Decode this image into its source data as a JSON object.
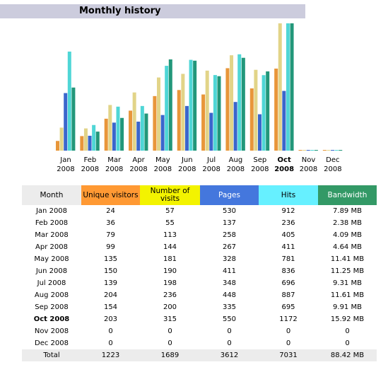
{
  "header": {
    "title": "Monthly history"
  },
  "month_header": "Month",
  "metrics": [
    {
      "name": "Unique visitors",
      "header_color": "#FF9933",
      "bar_color": "#E8963A"
    },
    {
      "name": "Number of visits",
      "header_color": "#F3F300",
      "bar_color": "#E2D488"
    },
    {
      "name": "Pages",
      "header_color": "#4477DD",
      "bar_color": "#3A66CC"
    },
    {
      "name": "Hits",
      "header_color": "#66F0FF",
      "bar_color": "#4FD6D6"
    },
    {
      "name": "Bandwidth",
      "header_color": "#339966",
      "bar_color": "#22977A"
    }
  ],
  "rows": [
    {
      "month": "Jan",
      "year": "2008",
      "values": [
        24,
        57,
        530,
        912,
        {
          "value": 7.89,
          "label": "7.89 MB"
        }
      ]
    },
    {
      "month": "Feb",
      "year": "2008",
      "values": [
        36,
        55,
        137,
        236,
        {
          "value": 2.38,
          "label": "2.38 MB"
        }
      ]
    },
    {
      "month": "Mar",
      "year": "2008",
      "values": [
        79,
        113,
        258,
        405,
        {
          "value": 4.09,
          "label": "4.09 MB"
        }
      ]
    },
    {
      "month": "Apr",
      "year": "2008",
      "values": [
        99,
        144,
        267,
        411,
        {
          "value": 4.64,
          "label": "4.64 MB"
        }
      ]
    },
    {
      "month": "May",
      "year": "2008",
      "values": [
        135,
        181,
        328,
        781,
        {
          "value": 11.41,
          "label": "11.41 MB"
        }
      ]
    },
    {
      "month": "Jun",
      "year": "2008",
      "values": [
        150,
        190,
        411,
        836,
        {
          "value": 11.25,
          "label": "11.25 MB"
        }
      ]
    },
    {
      "month": "Jul",
      "year": "2008",
      "values": [
        139,
        198,
        348,
        696,
        {
          "value": 9.31,
          "label": "9.31 MB"
        }
      ]
    },
    {
      "month": "Aug",
      "year": "2008",
      "values": [
        204,
        236,
        448,
        887,
        {
          "value": 11.61,
          "label": "11.61 MB"
        }
      ]
    },
    {
      "month": "Sep",
      "year": "2008",
      "values": [
        154,
        200,
        335,
        695,
        {
          "value": 9.91,
          "label": "9.91 MB"
        }
      ]
    },
    {
      "month": "Oct",
      "year": "2008",
      "current": true,
      "values": [
        203,
        315,
        550,
        1172,
        {
          "value": 15.92,
          "label": "15.92 MB"
        }
      ]
    },
    {
      "month": "Nov",
      "year": "2008",
      "values": [
        0,
        0,
        0,
        0,
        0
      ]
    },
    {
      "month": "Dec",
      "year": "2008",
      "values": [
        0,
        0,
        0,
        0,
        0
      ]
    }
  ],
  "total": {
    "label": "Total",
    "values": [
      1223,
      1689,
      3612,
      7031,
      {
        "value": 88.42,
        "label": "88.42 MB"
      }
    ]
  }
}
